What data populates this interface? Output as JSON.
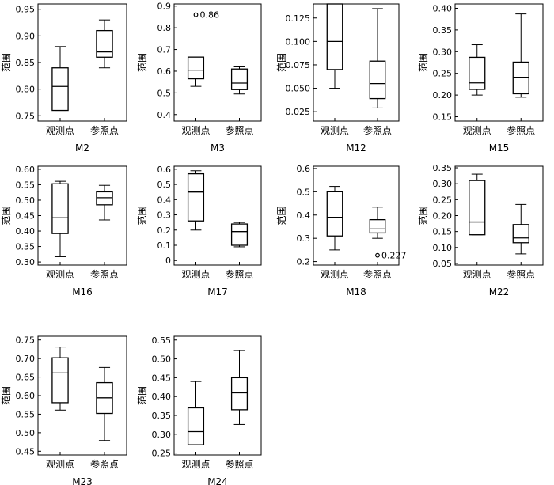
{
  "chart_data": [
    {
      "type": "box",
      "xlabel": "M2",
      "ylabel": "范围",
      "categories": [
        "观测点",
        "参照点"
      ],
      "ylim": [
        0.74,
        0.96
      ],
      "yticks": [
        0.75,
        0.8,
        0.85,
        0.9,
        0.95
      ],
      "yticklabels": [
        "0.75",
        "0.80",
        "0.85",
        "0.90",
        "0.95"
      ],
      "boxes": [
        {
          "min": 0.76,
          "q1": 0.76,
          "median": 0.805,
          "q3": 0.84,
          "max": 0.88
        },
        {
          "min": 0.84,
          "q1": 0.86,
          "median": 0.87,
          "q3": 0.91,
          "max": 0.93
        }
      ],
      "outliers": []
    },
    {
      "type": "box",
      "xlabel": "M3",
      "ylabel": "范围",
      "categories": [
        "观测点",
        "参照点"
      ],
      "ylim": [
        0.37,
        0.91
      ],
      "yticks": [
        0.4,
        0.5,
        0.6,
        0.7,
        0.8,
        0.9
      ],
      "yticklabels": [
        "0.4",
        "0.5",
        "0.6",
        "0.7",
        "0.8",
        "0.9"
      ],
      "boxes": [
        {
          "min": 0.53,
          "q1": 0.565,
          "median": 0.605,
          "q3": 0.665,
          "max": 0.665
        },
        {
          "min": 0.495,
          "q1": 0.515,
          "median": 0.545,
          "q3": 0.61,
          "max": 0.62
        }
      ],
      "outliers": [
        {
          "category": 0,
          "value": 0.86,
          "label": "0.86"
        }
      ]
    },
    {
      "type": "box",
      "xlabel": "M12",
      "ylabel": "范围",
      "categories": [
        "观测点",
        "参照点"
      ],
      "ylim": [
        0.015,
        0.14
      ],
      "yticks": [
        0.025,
        0.05,
        0.075,
        0.1,
        0.125
      ],
      "yticklabels": [
        "0.025",
        "0.050",
        "0.075",
        "0.100",
        "0.125"
      ],
      "boxes": [
        {
          "min": 0.05,
          "q1": 0.07,
          "median": 0.1,
          "q3": 0.14,
          "max": 0.14
        },
        {
          "min": 0.029,
          "q1": 0.039,
          "median": 0.055,
          "q3": 0.079,
          "max": 0.135
        }
      ],
      "outliers": []
    },
    {
      "type": "box",
      "xlabel": "M15",
      "ylabel": "范围",
      "categories": [
        "观测点",
        "参照点"
      ],
      "ylim": [
        0.14,
        0.41
      ],
      "yticks": [
        0.15,
        0.2,
        0.25,
        0.3,
        0.35,
        0.4
      ],
      "yticklabels": [
        "0.15",
        "0.20",
        "0.25",
        "0.30",
        "0.35",
        "0.40"
      ],
      "boxes": [
        {
          "min": 0.2,
          "q1": 0.213,
          "median": 0.228,
          "q3": 0.287,
          "max": 0.316
        },
        {
          "min": 0.195,
          "q1": 0.203,
          "median": 0.241,
          "q3": 0.276,
          "max": 0.387
        }
      ],
      "outliers": []
    },
    {
      "type": "box",
      "xlabel": "M16",
      "ylabel": "范围",
      "categories": [
        "观测点",
        "参照点"
      ],
      "ylim": [
        0.29,
        0.61
      ],
      "yticks": [
        0.3,
        0.35,
        0.4,
        0.45,
        0.5,
        0.55,
        0.6
      ],
      "yticklabels": [
        "0.30",
        "0.35",
        "0.40",
        "0.45",
        "0.50",
        "0.55",
        "0.60"
      ],
      "boxes": [
        {
          "min": 0.317,
          "q1": 0.392,
          "median": 0.443,
          "q3": 0.553,
          "max": 0.561
        },
        {
          "min": 0.436,
          "q1": 0.485,
          "median": 0.508,
          "q3": 0.527,
          "max": 0.548
        }
      ],
      "outliers": []
    },
    {
      "type": "box",
      "xlabel": "M17",
      "ylabel": "范围",
      "categories": [
        "观测点",
        "参照点"
      ],
      "ylim": [
        -0.03,
        0.62
      ],
      "yticks": [
        0,
        0.1,
        0.2,
        0.3,
        0.4,
        0.5,
        0.6
      ],
      "yticklabels": [
        "0",
        "0.1",
        "0.2",
        "0.3",
        "0.4",
        "0.5",
        "0.6"
      ],
      "boxes": [
        {
          "min": 0.2,
          "q1": 0.26,
          "median": 0.45,
          "q3": 0.57,
          "max": 0.59
        },
        {
          "min": 0.09,
          "q1": 0.1,
          "median": 0.19,
          "q3": 0.24,
          "max": 0.25
        }
      ],
      "outliers": []
    },
    {
      "type": "box",
      "xlabel": "M18",
      "ylabel": "范围",
      "categories": [
        "观测点",
        "参照点"
      ],
      "ylim": [
        0.185,
        0.61
      ],
      "yticks": [
        0.2,
        0.3,
        0.4,
        0.5,
        0.6
      ],
      "yticklabels": [
        "0.2",
        "0.3",
        "0.4",
        "0.5",
        "0.6"
      ],
      "boxes": [
        {
          "min": 0.25,
          "q1": 0.31,
          "median": 0.39,
          "q3": 0.5,
          "max": 0.523
        },
        {
          "min": 0.3,
          "q1": 0.323,
          "median": 0.34,
          "q3": 0.38,
          "max": 0.434
        }
      ],
      "outliers": [
        {
          "category": 1,
          "value": 0.227,
          "label": "0.227"
        }
      ]
    },
    {
      "type": "box",
      "xlabel": "M22",
      "ylabel": "范围",
      "categories": [
        "观测点",
        "参照点"
      ],
      "ylim": [
        0.045,
        0.355
      ],
      "yticks": [
        0.05,
        0.1,
        0.15,
        0.2,
        0.25,
        0.3,
        0.35
      ],
      "yticklabels": [
        "0.05",
        "0.10",
        "0.15",
        "0.20",
        "0.25",
        "0.30",
        "0.35"
      ],
      "boxes": [
        {
          "min": 0.14,
          "q1": 0.14,
          "median": 0.18,
          "q3": 0.31,
          "max": 0.33
        },
        {
          "min": 0.08,
          "q1": 0.115,
          "median": 0.13,
          "q3": 0.172,
          "max": 0.235
        }
      ],
      "outliers": []
    },
    {
      "type": "box",
      "xlabel": "M23",
      "ylabel": "范围",
      "categories": [
        "观测点",
        "参照点"
      ],
      "ylim": [
        0.44,
        0.76
      ],
      "yticks": [
        0.45,
        0.5,
        0.55,
        0.6,
        0.65,
        0.7,
        0.75
      ],
      "yticklabels": [
        "0.45",
        "0.50",
        "0.55",
        "0.60",
        "0.65",
        "0.70",
        "0.75"
      ],
      "boxes": [
        {
          "min": 0.561,
          "q1": 0.581,
          "median": 0.661,
          "q3": 0.702,
          "max": 0.731
        },
        {
          "min": 0.479,
          "q1": 0.552,
          "median": 0.594,
          "q3": 0.635,
          "max": 0.676
        }
      ],
      "outliers": []
    },
    {
      "type": "box",
      "xlabel": "M24",
      "ylabel": "范围",
      "categories": [
        "观测点",
        "参照点"
      ],
      "ylim": [
        0.245,
        0.56
      ],
      "yticks": [
        0.25,
        0.3,
        0.35,
        0.4,
        0.45,
        0.5,
        0.55
      ],
      "yticklabels": [
        "0.25",
        "0.30",
        "0.35",
        "0.40",
        "0.45",
        "0.50",
        "0.55"
      ],
      "boxes": [
        {
          "min": 0.272,
          "q1": 0.272,
          "median": 0.307,
          "q3": 0.37,
          "max": 0.44
        },
        {
          "min": 0.326,
          "q1": 0.365,
          "median": 0.41,
          "q3": 0.45,
          "max": 0.522
        }
      ],
      "outliers": []
    }
  ]
}
